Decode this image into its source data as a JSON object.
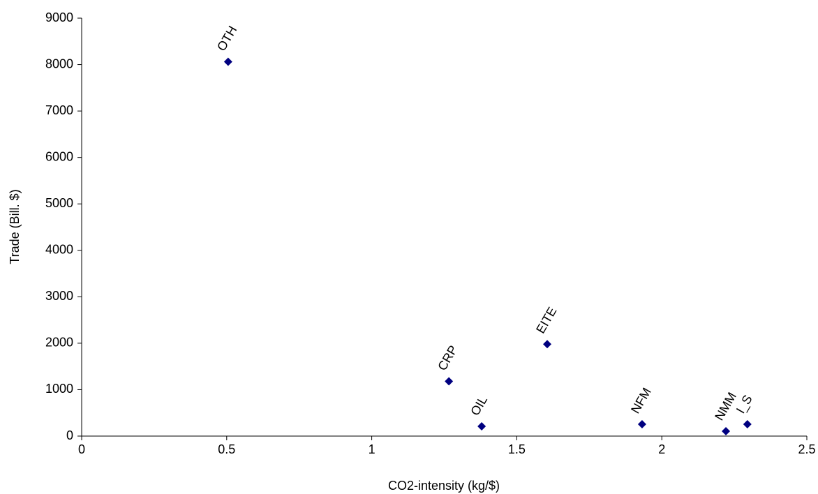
{
  "chart_data": {
    "type": "scatter",
    "x_label": "CO2-intensity (kg/$)",
    "y_label": "Trade (Bill. $)",
    "labels": [
      "OTH",
      "CRP",
      "OIL",
      "EITE",
      "NFM",
      "NMM",
      "I_S"
    ],
    "x": [
      0.505,
      1.266,
      1.379,
      1.605,
      1.932,
      2.221,
      2.295
    ],
    "values": [
      8060,
      1180,
      210,
      1980,
      255,
      105,
      255
    ],
    "color": "#000080",
    "xlim": [
      0,
      2.5
    ],
    "xticks": [
      0,
      0.5,
      1,
      1.5,
      2,
      2.5
    ],
    "ylim": [
      0,
      9000
    ],
    "yticks": [
      0,
      1000,
      2000,
      3000,
      4000,
      5000,
      6000,
      7000,
      8000,
      9000
    ],
    "grid": false
  }
}
